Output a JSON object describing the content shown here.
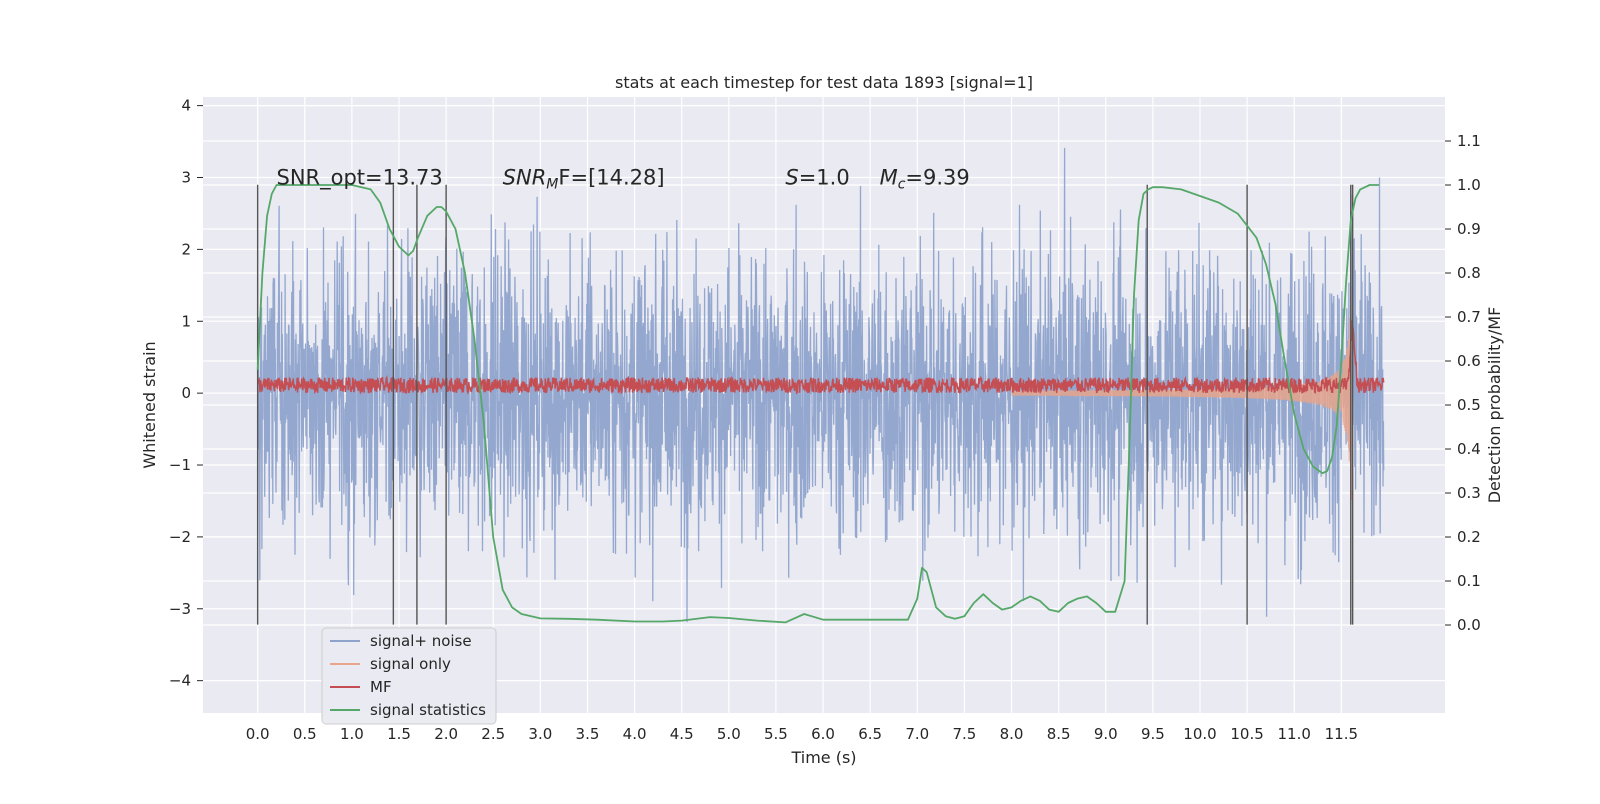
{
  "chart_data": {
    "type": "line",
    "title": "stats at each timestep for test data 1893 [signal=1]",
    "xlabel": "Time (s)",
    "ylabel": "Whitened strain",
    "ylabel_right": "Detection probability/MF",
    "xlim": [
      -0.58,
      12.6
    ],
    "ylim": [
      -4.45,
      4.12
    ],
    "ylim_right": [
      -0.2,
      1.2
    ],
    "x_ticks": [
      "0.0",
      "0.5",
      "1.0",
      "1.5",
      "2.0",
      "2.5",
      "3.0",
      "3.5",
      "4.0",
      "4.5",
      "5.0",
      "5.5",
      "6.0",
      "6.5",
      "7.0",
      "7.5",
      "8.0",
      "8.5",
      "9.0",
      "9.5",
      "10.0",
      "10.5",
      "11.0",
      "11.5"
    ],
    "y_ticks_left": [
      "−4",
      "−3",
      "−2",
      "−1",
      "0",
      "1",
      "2",
      "3",
      "4"
    ],
    "y_ticks_right": [
      "0.0",
      "0.1",
      "0.2",
      "0.3",
      "0.4",
      "0.5",
      "0.6",
      "0.7",
      "0.8",
      "0.9",
      "1.0",
      "1.1"
    ],
    "grid": true,
    "legend_position": "lower-left",
    "annotations": [
      {
        "id": "snr-opt",
        "text": "SNR_opt=13.73",
        "x": 0.2,
        "y": 3.0
      },
      {
        "id": "snr-mf",
        "text": "SNR",
        "sub": "M",
        "tail": "F=[14.28]",
        "x": 2.6,
        "y": 3.0
      },
      {
        "id": "s",
        "text": "S",
        "tail": "=1.0",
        "x": 5.6,
        "y": 3.0
      },
      {
        "id": "mc",
        "text": "M",
        "sub": "c",
        "tail": "=9.39",
        "x": 6.6,
        "y": 3.0
      }
    ],
    "vertical_markers_x": [
      0.0,
      1.44,
      1.69,
      2.0,
      9.44,
      10.5,
      11.6,
      11.62
    ],
    "series": [
      {
        "name": "signal+ noise",
        "color": "#8ea3cc",
        "axis": "left",
        "noise_std": 1.0,
        "x_range": [
          0.0,
          11.95
        ]
      },
      {
        "name": "signal only",
        "color": "#e8a58c",
        "axis": "left",
        "chirp_peak_time": 11.62,
        "chirp_peak_amplitude": 1.5
      },
      {
        "name": "MF",
        "color": "#c44e52",
        "axis": "right",
        "baseline": 0.545,
        "peak_x": 11.62,
        "peak_y": 0.69
      },
      {
        "name": "signal statistics",
        "color": "#55a868",
        "axis": "right",
        "x": [
          0.0,
          0.05,
          0.1,
          0.15,
          0.2,
          0.3,
          0.5,
          0.8,
          1.0,
          1.2,
          1.3,
          1.4,
          1.5,
          1.6,
          1.65,
          1.7,
          1.8,
          1.9,
          1.95,
          2.0,
          2.1,
          2.2,
          2.3,
          2.4,
          2.45,
          2.5,
          2.6,
          2.7,
          2.8,
          3.0,
          3.3,
          3.6,
          4.0,
          4.3,
          4.5,
          4.8,
          5.0,
          5.3,
          5.6,
          5.8,
          6.0,
          6.3,
          6.6,
          6.9,
          7.0,
          7.05,
          7.1,
          7.15,
          7.2,
          7.3,
          7.4,
          7.5,
          7.6,
          7.7,
          7.8,
          7.9,
          8.0,
          8.1,
          8.2,
          8.3,
          8.4,
          8.5,
          8.6,
          8.7,
          8.8,
          8.9,
          9.0,
          9.1,
          9.2,
          9.25,
          9.3,
          9.35,
          9.4,
          9.45,
          9.5,
          9.6,
          9.8,
          10.0,
          10.2,
          10.4,
          10.6,
          10.7,
          10.8,
          10.9,
          11.0,
          11.1,
          11.2,
          11.3,
          11.35,
          11.4,
          11.45,
          11.5,
          11.55,
          11.6,
          11.65,
          11.7,
          11.8,
          11.9
        ],
        "y": [
          0.58,
          0.8,
          0.93,
          0.98,
          1.0,
          1.0,
          1.0,
          1.0,
          1.0,
          0.99,
          0.96,
          0.9,
          0.86,
          0.84,
          0.85,
          0.88,
          0.93,
          0.95,
          0.95,
          0.94,
          0.9,
          0.8,
          0.65,
          0.46,
          0.33,
          0.2,
          0.08,
          0.04,
          0.025,
          0.015,
          0.014,
          0.012,
          0.008,
          0.008,
          0.01,
          0.018,
          0.016,
          0.01,
          0.006,
          0.025,
          0.012,
          0.012,
          0.012,
          0.012,
          0.06,
          0.13,
          0.12,
          0.08,
          0.04,
          0.02,
          0.014,
          0.02,
          0.05,
          0.07,
          0.05,
          0.035,
          0.04,
          0.055,
          0.065,
          0.055,
          0.035,
          0.03,
          0.05,
          0.06,
          0.065,
          0.05,
          0.03,
          0.03,
          0.1,
          0.4,
          0.75,
          0.92,
          0.98,
          0.99,
          0.995,
          0.995,
          0.99,
          0.975,
          0.96,
          0.935,
          0.88,
          0.82,
          0.73,
          0.6,
          0.48,
          0.4,
          0.36,
          0.345,
          0.35,
          0.38,
          0.45,
          0.6,
          0.78,
          0.92,
          0.97,
          0.99,
          1.0,
          1.0
        ]
      }
    ]
  }
}
